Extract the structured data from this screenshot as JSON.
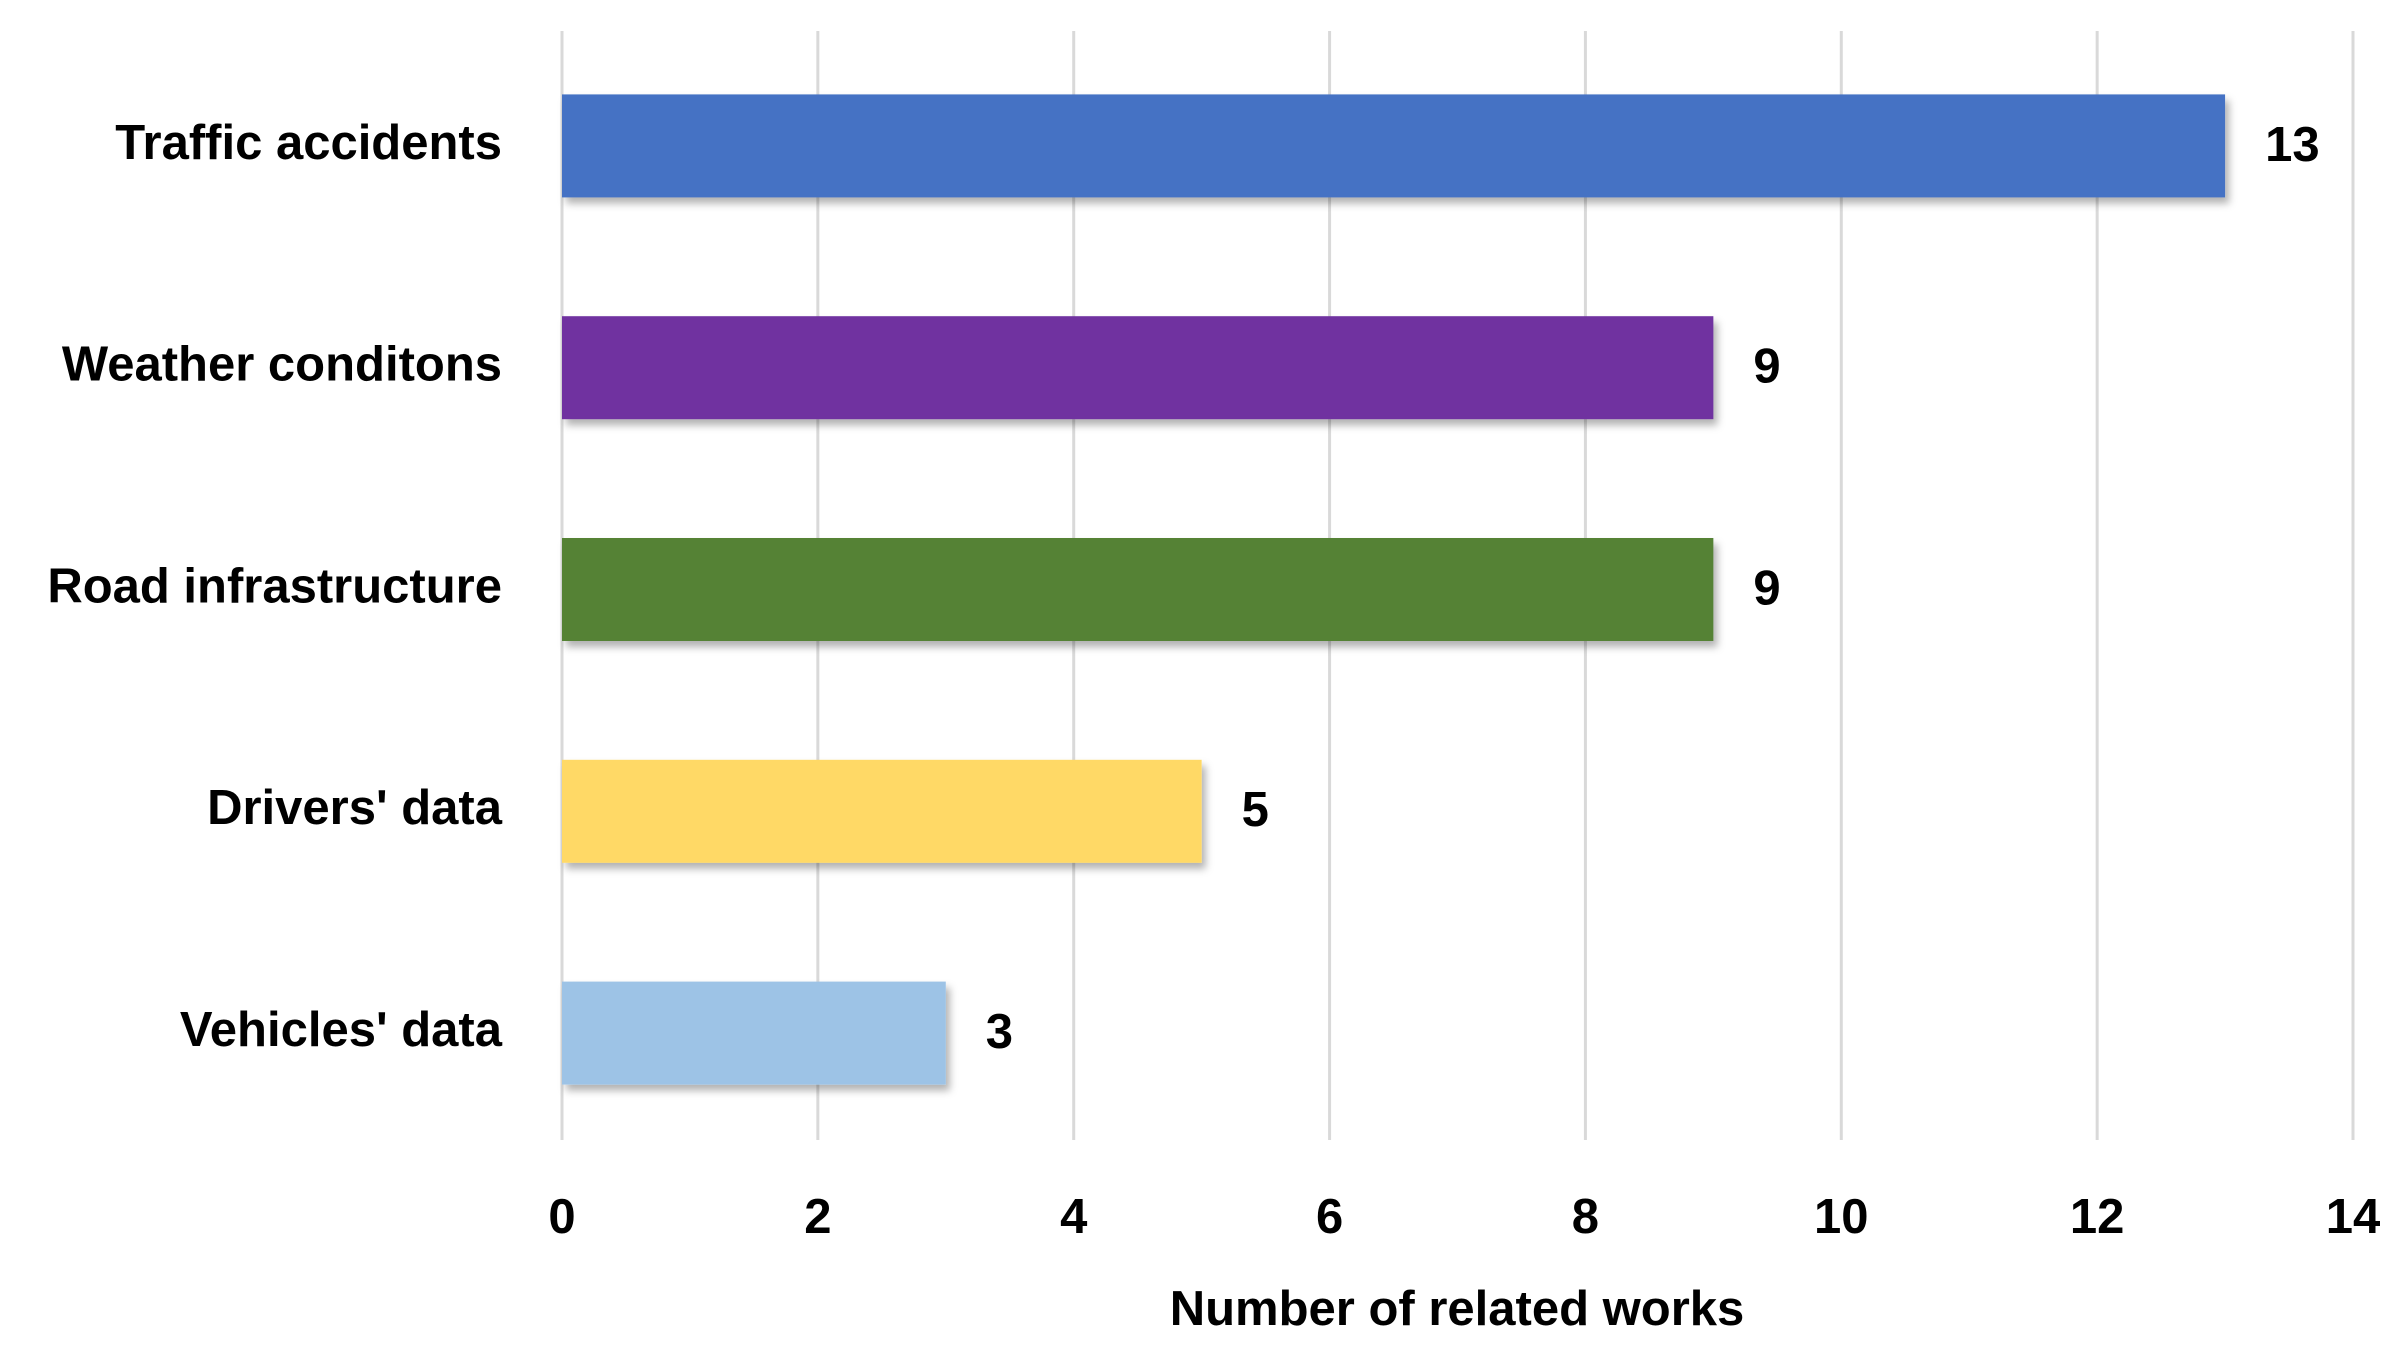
{
  "chart_data": {
    "type": "barh",
    "categories": [
      "Traffic accidents",
      "Weather conditons",
      "Road infrastructure",
      "Drivers' data",
      "Vehicles' data"
    ],
    "values": [
      13,
      9,
      9,
      5,
      3
    ],
    "colors": [
      "#4472c4",
      "#7030a0",
      "#548235",
      "#ffd966",
      "#9dc3e6"
    ],
    "xlabel": "Number of related works",
    "xlim": [
      0,
      14
    ],
    "xticks": [
      0,
      2,
      4,
      6,
      8,
      10,
      12,
      14
    ],
    "grid": true,
    "value_label_color": "#c00000",
    "xlabel_color": "#c00000"
  }
}
